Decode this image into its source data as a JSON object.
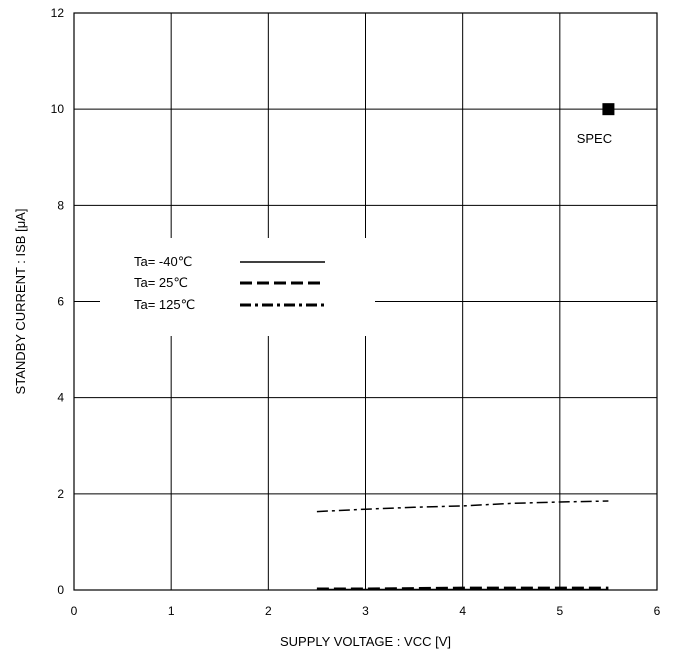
{
  "chart_data": {
    "type": "line",
    "xlabel": "SUPPLY VOLTAGE : VCC [V]",
    "ylabel": "STANDBY CURRENT : ISB [μA]",
    "xlim": [
      0,
      6
    ],
    "ylim": [
      0,
      12
    ],
    "xticks": [
      "0",
      "1",
      "2",
      "3",
      "4",
      "5",
      "6"
    ],
    "yticks": [
      "0",
      "2",
      "4",
      "6",
      "8",
      "10",
      "12"
    ],
    "xtick_values": [
      0,
      1,
      2,
      3,
      4,
      5,
      6
    ],
    "ytick_values": [
      0,
      2,
      4,
      6,
      8,
      10,
      12
    ],
    "grid": true,
    "legend_position": "left-middle",
    "series": [
      {
        "name": "Ta= -40℃",
        "style": "solid",
        "x": [
          2.5,
          3.0,
          3.5,
          4.0,
          4.5,
          5.0,
          5.5
        ],
        "y": [
          0.01,
          0.01,
          0.01,
          0.01,
          0.01,
          0.01,
          0.01
        ]
      },
      {
        "name": "Ta=  25℃",
        "style": "dashed",
        "x": [
          2.5,
          3.0,
          3.5,
          4.0,
          4.5,
          5.0,
          5.5
        ],
        "y": [
          0.02,
          0.02,
          0.03,
          0.04,
          0.04,
          0.04,
          0.04
        ]
      },
      {
        "name": "Ta= 125℃",
        "style": "dashdot",
        "x": [
          2.5,
          3.0,
          3.5,
          4.0,
          4.5,
          5.0,
          5.5
        ],
        "y": [
          1.63,
          1.68,
          1.72,
          1.75,
          1.8,
          1.83,
          1.85
        ]
      }
    ],
    "annotations": [
      {
        "text": "SPEC",
        "x": 5.5,
        "y": 10
      }
    ]
  }
}
